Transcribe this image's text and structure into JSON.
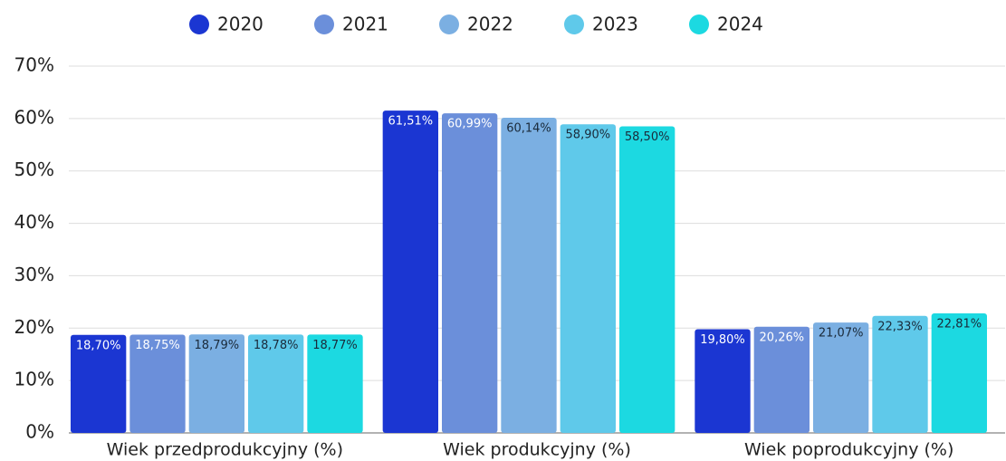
{
  "chart_data": {
    "type": "bar",
    "categories": [
      "Wiek przedprodukcyjny (%)",
      "Wiek produkcyjny (%)",
      "Wiek poprodukcyjny (%)"
    ],
    "series": [
      {
        "name": "2020",
        "color": "#1b36d2",
        "values": [
          18.7,
          61.51,
          19.8
        ],
        "value_labels": [
          "18,70%",
          "61,51%",
          "19,80%"
        ]
      },
      {
        "name": "2021",
        "color": "#6b8fda",
        "values": [
          18.75,
          60.99,
          20.26
        ],
        "value_labels": [
          "18,75%",
          "60,99%",
          "20,26%"
        ]
      },
      {
        "name": "2022",
        "color": "#7bafe2",
        "values": [
          18.79,
          60.14,
          21.07
        ],
        "value_labels": [
          "18,79%",
          "60,14%",
          "21,07%"
        ]
      },
      {
        "name": "2023",
        "color": "#5fc9ea",
        "values": [
          18.78,
          58.9,
          22.33
        ],
        "value_labels": [
          "18,78%",
          "58,90%",
          "22,33%"
        ]
      },
      {
        "name": "2024",
        "color": "#1cd9e1",
        "values": [
          18.77,
          58.5,
          22.81
        ],
        "value_labels": [
          "18,77%",
          "58,50%",
          "22,81%"
        ]
      }
    ],
    "ylim": [
      0,
      70
    ],
    "yticks": [
      {
        "value": 0,
        "label": "0%"
      },
      {
        "value": 10,
        "label": "10%"
      },
      {
        "value": 20,
        "label": "20%"
      },
      {
        "value": 30,
        "label": "30%"
      },
      {
        "value": 40,
        "label": "40%"
      },
      {
        "value": 50,
        "label": "50%"
      },
      {
        "value": 60,
        "label": "60%"
      },
      {
        "value": 70,
        "label": "70%"
      }
    ],
    "grid": true,
    "legend": "top"
  }
}
